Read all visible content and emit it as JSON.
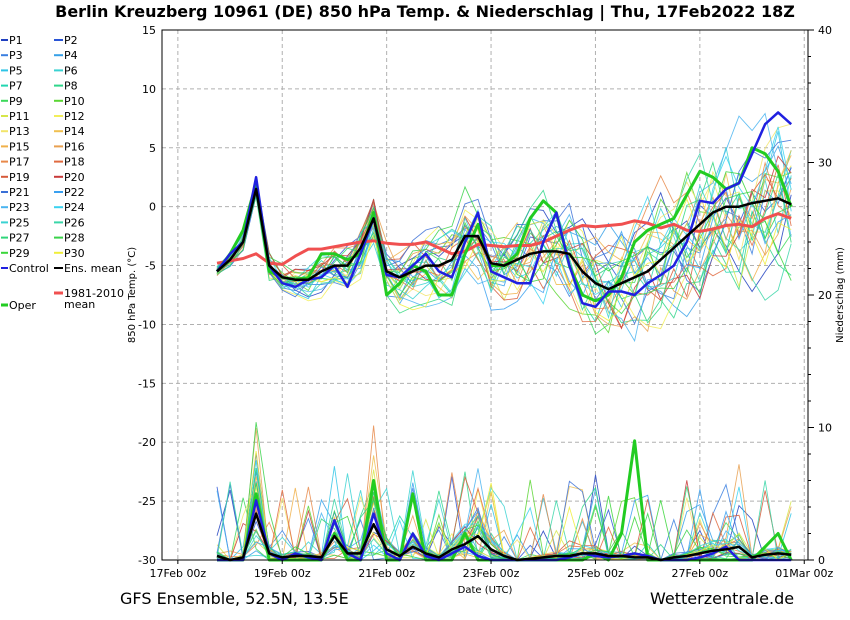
{
  "title": "Berlin Kreuzberg 10961 (DE)  850 hPa Temp. & Niederschlag | Thu, 17Feb2022 18Z",
  "footer_left": "GFS Ensemble, 52.5N, 13.5E",
  "footer_right": "Wetterzentrale.de",
  "chart_data": {
    "type": "line",
    "xlabel": "Date (UTC)",
    "ylabel_left": "850 hPa Temp. (°C)",
    "ylabel_right": "Niederschlag (mm)",
    "ylim_left": [
      -30,
      15
    ],
    "ylim_right": [
      0,
      40
    ],
    "grid": true,
    "x_tick_labels": [
      "17Feb 00z",
      "19Feb 00z",
      "21Feb 00z",
      "23Feb 00z",
      "25Feb 00z",
      "27Feb 00z",
      "01Mar 00z"
    ],
    "y_ticks_left": [
      15,
      10,
      5,
      0,
      -5,
      -10,
      -15,
      -20,
      -25,
      -30
    ],
    "y_ticks_right": [
      40,
      30,
      20,
      10,
      0
    ],
    "legend": [
      {
        "left": "P1",
        "right": "P2",
        "left_color": "#1f3fbf",
        "right_color": "#2a55d6"
      },
      {
        "left": "P3",
        "right": "P4",
        "left_color": "#3a7fe0",
        "right_color": "#36a0e8"
      },
      {
        "left": "P5",
        "right": "P6",
        "left_color": "#2ec4e6",
        "right_color": "#3ad2d2"
      },
      {
        "left": "P7",
        "right": "P8",
        "left_color": "#22d6b0",
        "right_color": "#2fd68a"
      },
      {
        "left": "P9",
        "right": "P10",
        "left_color": "#3cd95a",
        "right_color": "#5ad633"
      },
      {
        "left": "P11",
        "right": "P12",
        "left_color": "#d6e64a",
        "right_color": "#f2ee5a"
      },
      {
        "left": "P13",
        "right": "P14",
        "left_color": "#f2e46a",
        "right_color": "#f0c050"
      },
      {
        "left": "P15",
        "right": "P16",
        "left_color": "#f0b04a",
        "right_color": "#e8a050"
      },
      {
        "left": "P17",
        "right": "P18",
        "left_color": "#e8894a",
        "right_color": "#e06a40"
      },
      {
        "left": "P19",
        "right": "P20",
        "left_color": "#d65a3a",
        "right_color": "#c83a3a"
      },
      {
        "left": "P21",
        "right": "P22",
        "left_color": "#3a6fd6",
        "right_color": "#3aa0f0"
      },
      {
        "left": "P23",
        "right": "P24",
        "left_color": "#4ab4f0",
        "right_color": "#3ad2f0"
      },
      {
        "left": "P25",
        "right": "P26",
        "left_color": "#3ad2d2",
        "right_color": "#3ad6a8"
      },
      {
        "left": "P27",
        "right": "P28",
        "left_color": "#2ed67a",
        "right_color": "#3ad24a"
      },
      {
        "left": "P29",
        "right": "P30",
        "left_color": "#3ad63a",
        "right_color": "#f0ee3a"
      },
      {
        "left": "Control",
        "right": "Ens. mean",
        "left_color": "#2020e0",
        "right_color": "#000000"
      }
    ],
    "legend_extra": [
      {
        "label": "Oper",
        "color": "#22cc22"
      },
      {
        "label": "1981-2010\nmean",
        "color": "#f05050"
      }
    ],
    "series": [
      {
        "name": "Control",
        "color": "#2020e0",
        "width": 2.5,
        "values": [
          -5.5,
          -4,
          -3,
          2.5,
          -5,
          -6.5,
          -6.8,
          -6.2,
          -6,
          -5,
          -6.8,
          -4,
          -1,
          -5.8,
          -6,
          -5,
          -4,
          -5.5,
          -6,
          -3,
          -0.5,
          -5.5,
          -6,
          -6.5,
          -6.5,
          -3,
          -0.5,
          -5,
          -8.2,
          -8.5,
          -7.2,
          -7.2,
          -7.5,
          -6.5,
          -5.8,
          -5,
          -3,
          0.5,
          0.3,
          1.5,
          2,
          4.5,
          7,
          8,
          7
        ]
      },
      {
        "name": "Oper",
        "color": "#22cc22",
        "width": 3,
        "values": [
          -5.5,
          -4,
          -2,
          2,
          -5.5,
          -6,
          -6.2,
          -6,
          -4,
          -4,
          -4.5,
          -4,
          -0.5,
          -7.5,
          -6.5,
          -5,
          -5.5,
          -7.5,
          -7.5,
          -4,
          -1.5,
          -5,
          -5,
          -4,
          -1,
          0.5,
          -0.5,
          -5,
          -7.5,
          -8,
          -7.5,
          -6,
          -3,
          -2,
          -1.5,
          -1,
          1,
          3,
          2.5,
          1.5,
          2,
          5,
          4.5,
          3,
          0
        ]
      },
      {
        "name": "Ens. mean",
        "color": "#000000",
        "width": 2.5,
        "values": [
          -5.5,
          -4.5,
          -3,
          1.5,
          -5,
          -6,
          -6.2,
          -6.2,
          -5.5,
          -5,
          -5,
          -3.5,
          -1,
          -5.5,
          -6,
          -5.5,
          -5,
          -5,
          -4.5,
          -2.5,
          -2.5,
          -4.8,
          -5,
          -4.5,
          -4,
          -3.8,
          -3.8,
          -4,
          -5.5,
          -6.5,
          -7,
          -6.5,
          -6,
          -5.5,
          -4.5,
          -3.5,
          -2.5,
          -1.5,
          -0.5,
          0,
          0,
          0.3,
          0.5,
          0.7,
          0.2
        ]
      },
      {
        "name": "1981-2010 mean",
        "color": "#f05050",
        "width": 3,
        "values": [
          -4.8,
          -4.6,
          -4.4,
          -4,
          -4.8,
          -4.9,
          -4.2,
          -3.6,
          -3.6,
          -3.4,
          -3.2,
          -3,
          -2.9,
          -3.1,
          -3.2,
          -3.2,
          -3.0,
          -3.5,
          -4,
          -3.8,
          -3.2,
          -3.3,
          -3.4,
          -3.3,
          -3.3,
          -3,
          -2.5,
          -2,
          -1.6,
          -1.7,
          -1.6,
          -1.5,
          -1.2,
          -1.4,
          -1.8,
          -1.5,
          -2,
          -2.1,
          -1.9,
          -1.6,
          -1.5,
          -1.7,
          -1,
          -0.6,
          -1
        ]
      }
    ],
    "precip_series": [
      {
        "name": "Control",
        "color": "#2020e0",
        "width": 2.5,
        "values": [
          0,
          0,
          0,
          4.5,
          0.5,
          0,
          0.5,
          0.2,
          0,
          3,
          0.5,
          0,
          3.5,
          0.5,
          0,
          2,
          0.3,
          0,
          0.5,
          1,
          0.3,
          0,
          0,
          0,
          0,
          0,
          0,
          0.2,
          0.5,
          0.3,
          0.2,
          0.3,
          0.5,
          0.3,
          0,
          0,
          0,
          0.2,
          0.5,
          1,
          0,
          0,
          0,
          0,
          0
        ]
      },
      {
        "name": "Oper",
        "color": "#22cc22",
        "width": 3,
        "values": [
          0,
          0,
          0,
          5,
          0,
          0,
          0,
          0,
          0,
          2,
          0,
          0,
          6,
          0,
          0,
          5,
          0,
          0,
          0,
          2,
          0,
          0,
          0,
          0,
          0,
          0,
          0,
          0,
          0,
          0.5,
          0,
          2,
          9,
          0,
          0,
          0,
          0,
          0,
          0,
          0,
          0,
          0,
          1,
          2,
          0
        ]
      },
      {
        "name": "Ens. mean",
        "color": "#000000",
        "width": 2.5,
        "values": [
          0.3,
          0,
          0.2,
          3.5,
          0.5,
          0.2,
          0.3,
          0.3,
          0.2,
          1.8,
          0.5,
          0.5,
          2.7,
          0.8,
          0.3,
          1,
          0.5,
          0.2,
          0.8,
          1.2,
          1.8,
          0.8,
          0.3,
          0,
          0.1,
          0.2,
          0.3,
          0.3,
          0.5,
          0.5,
          0.3,
          0.3,
          0.2,
          0.2,
          0,
          0.2,
          0.3,
          0.5,
          0.7,
          0.8,
          1,
          0.2,
          0.4,
          0.5,
          0.4
        ]
      }
    ]
  }
}
